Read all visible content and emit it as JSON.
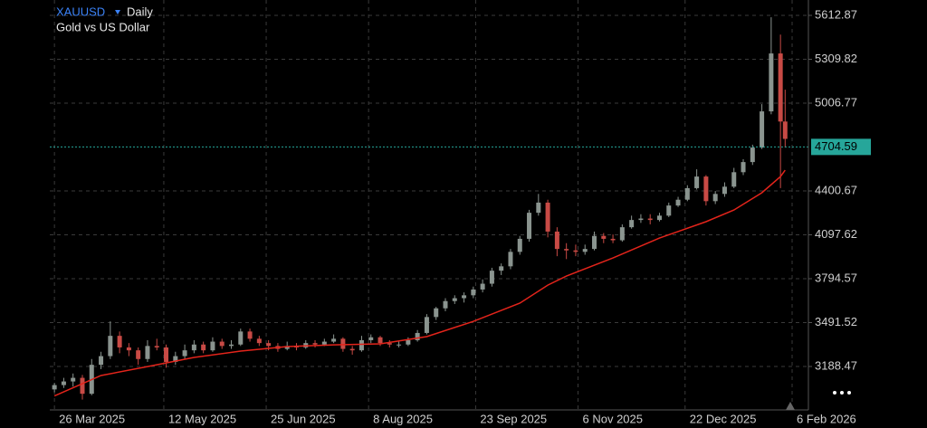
{
  "chart_data": {
    "type": "candlestick",
    "title": "XAUUSD",
    "timeframe": "Daily",
    "subtitle": "Gold vs US Dollar",
    "x": [
      "2025-03-26",
      "2025-03-30",
      "2025-04-03",
      "2025-04-07",
      "2025-04-11",
      "2025-04-15",
      "2025-04-19",
      "2025-04-23",
      "2025-04-27",
      "2025-05-01",
      "2025-05-05",
      "2025-05-09",
      "2025-05-13",
      "2025-05-17",
      "2025-05-21",
      "2025-05-25",
      "2025-05-29",
      "2025-06-02",
      "2025-06-06",
      "2025-06-10",
      "2025-06-14",
      "2025-06-18",
      "2025-06-22",
      "2025-06-26",
      "2025-06-30",
      "2025-07-04",
      "2025-07-08",
      "2025-07-12",
      "2025-07-16",
      "2025-07-20",
      "2025-07-24",
      "2025-07-28",
      "2025-08-01",
      "2025-08-05",
      "2025-08-09",
      "2025-08-13",
      "2025-08-17",
      "2025-08-21",
      "2025-08-25",
      "2025-08-29",
      "2025-09-02",
      "2025-09-06",
      "2025-09-10",
      "2025-09-14",
      "2025-09-18",
      "2025-09-22",
      "2025-09-26",
      "2025-09-30",
      "2025-10-04",
      "2025-10-08",
      "2025-10-12",
      "2025-10-16",
      "2025-10-20",
      "2025-10-24",
      "2025-10-28",
      "2025-11-01",
      "2025-11-05",
      "2025-11-09",
      "2025-11-13",
      "2025-11-17",
      "2025-11-21",
      "2025-11-25",
      "2025-11-29",
      "2025-12-03",
      "2025-12-07",
      "2025-12-11",
      "2025-12-15",
      "2025-12-19",
      "2025-12-23",
      "2025-12-27",
      "2025-12-31",
      "2026-01-04",
      "2026-01-08",
      "2026-01-12",
      "2026-01-16",
      "2026-01-20",
      "2026-01-24",
      "2026-01-28",
      "2026-02-01",
      "2026-02-03"
    ],
    "open": [
      3030,
      3060,
      3085,
      3110,
      3000,
      3200,
      3260,
      3400,
      3320,
      3300,
      3240,
      3330,
      3320,
      3220,
      3260,
      3300,
      3340,
      3300,
      3360,
      3330,
      3340,
      3430,
      3380,
      3350,
      3330,
      3310,
      3330,
      3320,
      3350,
      3340,
      3360,
      3380,
      3310,
      3300,
      3370,
      3390,
      3350,
      3340,
      3340,
      3370,
      3420,
      3530,
      3590,
      3640,
      3660,
      3680,
      3720,
      3760,
      3850,
      3880,
      3980,
      4070,
      4250,
      4320,
      4120,
      4000,
      3990,
      3980,
      4000,
      4090,
      4070,
      4060,
      4150,
      4200,
      4210,
      4200,
      4230,
      4300,
      4340,
      4420,
      4500,
      4330,
      4380,
      4430,
      4530,
      4600,
      4700,
      4950,
      5350,
      4880
    ],
    "high": [
      3075,
      3110,
      3140,
      3130,
      3240,
      3290,
      3500,
      3430,
      3350,
      3320,
      3370,
      3380,
      3340,
      3290,
      3340,
      3370,
      3360,
      3390,
      3380,
      3370,
      3450,
      3450,
      3400,
      3370,
      3350,
      3360,
      3350,
      3370,
      3370,
      3380,
      3410,
      3390,
      3330,
      3400,
      3410,
      3400,
      3370,
      3360,
      3390,
      3440,
      3550,
      3600,
      3660,
      3680,
      3700,
      3740,
      3790,
      3870,
      3900,
      4000,
      4090,
      4270,
      4380,
      4340,
      4150,
      4040,
      4030,
      4030,
      4120,
      4110,
      4100,
      4170,
      4230,
      4240,
      4240,
      4250,
      4320,
      4360,
      4440,
      4550,
      4510,
      4400,
      4460,
      4560,
      4620,
      4720,
      5000,
      5600,
      5480,
      5100
    ],
    "low": [
      3010,
      3040,
      3050,
      2960,
      2990,
      3170,
      3240,
      3280,
      3260,
      3200,
      3220,
      3300,
      3180,
      3200,
      3240,
      3280,
      3280,
      3290,
      3310,
      3310,
      3330,
      3360,
      3330,
      3300,
      3290,
      3300,
      3300,
      3310,
      3320,
      3330,
      3350,
      3290,
      3270,
      3290,
      3350,
      3330,
      3320,
      3320,
      3330,
      3360,
      3410,
      3510,
      3570,
      3620,
      3630,
      3660,
      3700,
      3740,
      3820,
      3860,
      3960,
      4050,
      4230,
      4080,
      3950,
      3930,
      3950,
      3960,
      3990,
      4040,
      4040,
      4050,
      4140,
      4180,
      4170,
      4190,
      4220,
      4290,
      4330,
      4410,
      4300,
      4310,
      4360,
      4420,
      4510,
      4580,
      4690,
      4930,
      4420,
      4700
    ],
    "close": [
      3060,
      3085,
      3110,
      3000,
      3200,
      3260,
      3400,
      3320,
      3300,
      3240,
      3330,
      3320,
      3220,
      3260,
      3300,
      3340,
      3300,
      3360,
      3330,
      3340,
      3430,
      3380,
      3350,
      3330,
      3310,
      3330,
      3320,
      3350,
      3340,
      3360,
      3380,
      3310,
      3300,
      3370,
      3390,
      3350,
      3340,
      3340,
      3370,
      3420,
      3530,
      3590,
      3640,
      3660,
      3680,
      3720,
      3760,
      3850,
      3880,
      3980,
      4070,
      4250,
      4320,
      4120,
      4000,
      3990,
      3980,
      4000,
      4090,
      4070,
      4060,
      4150,
      4200,
      4210,
      4200,
      4230,
      4300,
      4340,
      4420,
      4500,
      4330,
      4380,
      4430,
      4530,
      4600,
      4700,
      4950,
      5350,
      4880,
      4760
    ],
    "up_color": "#8a948f",
    "down_color": "#c84a45",
    "moving_average": {
      "color": "#e3241b",
      "x": [
        "2025-03-26",
        "2025-04-15",
        "2025-05-05",
        "2025-05-25",
        "2025-06-14",
        "2025-07-04",
        "2025-07-24",
        "2025-08-13",
        "2025-09-02",
        "2025-09-22",
        "2025-10-12",
        "2025-10-24",
        "2025-11-01",
        "2025-11-21",
        "2025-12-11",
        "2025-12-31",
        "2026-01-12",
        "2026-01-24",
        "2026-02-01",
        "2026-02-03"
      ],
      "values": [
        2985,
        3126,
        3188,
        3251,
        3295,
        3326,
        3338,
        3345,
        3395,
        3500,
        3626,
        3750,
        3813,
        3938,
        4075,
        4188,
        4269,
        4388,
        4500,
        4544
      ]
    },
    "current_price": {
      "value": 4704.59,
      "color": "#26a69a"
    },
    "xlim": [
      "2025-03-24",
      "2026-02-13"
    ],
    "ylim": [
      2888.6,
      5719.1
    ],
    "xticks": [
      {
        "value": "2025-03-26",
        "label": "26 Mar 2025"
      },
      {
        "value": "2025-05-12",
        "label": "12 May 2025"
      },
      {
        "value": "2025-06-25",
        "label": "25 Jun 2025"
      },
      {
        "value": "2025-08-08",
        "label": "8 Aug 2025"
      },
      {
        "value": "2025-09-23",
        "label": "23 Sep 2025"
      },
      {
        "value": "2025-11-06",
        "label": "6 Nov 2025"
      },
      {
        "value": "2025-12-22",
        "label": "22 Dec 2025"
      },
      {
        "value": "2026-02-06",
        "label": "6 Feb 2026"
      }
    ],
    "yticks": [
      3188.47,
      3491.52,
      3794.57,
      4097.62,
      4400.67,
      5006.77,
      5309.82,
      5612.87
    ],
    "grid": true
  }
}
